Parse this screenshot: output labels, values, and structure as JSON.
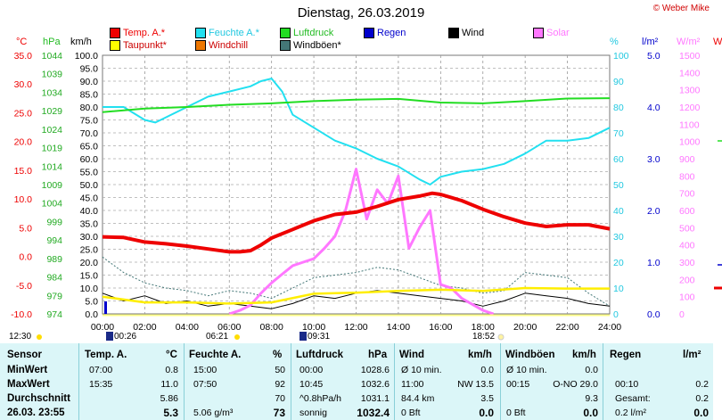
{
  "title": "Dienstag, 26.03.2019",
  "credit": "© Weber Mike",
  "legend": [
    {
      "label": "Temp. A.*",
      "color": "#ee0000"
    },
    {
      "label": "Feuchte A.*",
      "color": "#22e0f0"
    },
    {
      "label": "Luftdruck",
      "color": "#22dd22"
    },
    {
      "label": "Regen",
      "color": "#0000cc"
    },
    {
      "label": "Wind",
      "color": "#000000"
    },
    {
      "label": "Solar",
      "color": "#ff77ff"
    },
    {
      "label": "Taupunkt*",
      "color": "#ffff00"
    },
    {
      "label": "Windchill",
      "color": "#ee7700"
    },
    {
      "label": "Windböen*",
      "color": "#447777"
    }
  ],
  "axis_units": {
    "temp": "°C",
    "pressure": "hPa",
    "wind": "km/h",
    "humidity": "%",
    "rain": "l/m²",
    "solar": "W/m²",
    "right_edge": "W"
  },
  "chart_data": {
    "type": "line",
    "x_ticks": [
      "00:00",
      "02:00",
      "04:00",
      "06:00",
      "08:00",
      "10:00",
      "12:00",
      "14:00",
      "16:00",
      "18:00",
      "20:00",
      "22:00",
      "24:00"
    ],
    "x_range_hours": [
      0,
      24
    ],
    "axes": {
      "temp_c": {
        "range": [
          -10,
          35
        ],
        "ticks": [
          "35.0",
          "30.0",
          "25.0",
          "20.0",
          "15.0",
          "10.0",
          "5.0",
          "0.0",
          "-5.0",
          "-10.0"
        ]
      },
      "pressure_hpa": {
        "range": [
          974,
          1044
        ],
        "ticks": [
          "1044",
          "1039",
          "1034",
          "1029",
          "1024",
          "1019",
          "1014",
          "1009",
          "1004",
          "999",
          "994",
          "989",
          "984",
          "979",
          "974"
        ]
      },
      "wind_kmh": {
        "range": [
          0,
          100
        ],
        "ticks": [
          "100.0",
          "95.0",
          "90.0",
          "85.0",
          "80.0",
          "75.0",
          "70.0",
          "65.0",
          "60.0",
          "55.0",
          "50.0",
          "45.0",
          "40.0",
          "35.0",
          "30.0",
          "25.0",
          "20.0",
          "15.0",
          "10.0",
          "5.0",
          "0.0"
        ]
      },
      "humidity_pct": {
        "range": [
          0,
          100
        ],
        "ticks": [
          "100",
          "90",
          "80",
          "70",
          "60",
          "50",
          "40",
          "30",
          "20",
          "10",
          "0"
        ]
      },
      "rain_l_m2": {
        "range": [
          0,
          5
        ],
        "ticks": [
          "5.0",
          "4.0",
          "3.0",
          "2.0",
          "1.0",
          "0.0"
        ]
      },
      "solar_w_m2": {
        "range": [
          0,
          1500
        ],
        "ticks": [
          "1500",
          "1400",
          "1300",
          "1200",
          "1100",
          "1000",
          "900",
          "800",
          "700",
          "600",
          "500",
          "400",
          "300",
          "200",
          "100",
          "0"
        ]
      }
    },
    "series": [
      {
        "name": "Temp. A.*",
        "axis": "temp_c",
        "x": [
          0,
          1,
          2,
          3,
          4,
          5,
          6,
          6.5,
          7,
          7.5,
          8,
          9,
          10,
          11,
          12,
          13,
          14,
          15,
          15.6,
          16,
          17,
          18,
          19,
          20,
          21,
          22,
          23,
          24
        ],
        "values": [
          3.4,
          3.3,
          2.5,
          2.2,
          1.8,
          1.3,
          0.8,
          0.8,
          1.0,
          2.0,
          3.2,
          4.7,
          6.2,
          7.3,
          7.7,
          8.7,
          9.9,
          10.5,
          11.0,
          10.8,
          9.7,
          8.2,
          6.9,
          5.8,
          5.2,
          5.5,
          5.5,
          4.8
        ]
      },
      {
        "name": "Feuchte A.*",
        "axis": "humidity_pct",
        "x": [
          0,
          1,
          2,
          2.5,
          3,
          4,
          5,
          6,
          7,
          7.5,
          8,
          8.5,
          9,
          10,
          11,
          12,
          13,
          14,
          15,
          15.5,
          16,
          17,
          18,
          19,
          20,
          21,
          22,
          23,
          24
        ],
        "values": [
          80,
          80,
          75,
          74,
          76,
          80,
          84,
          86,
          88,
          90,
          91,
          86,
          77,
          72,
          67,
          64,
          60,
          57,
          52,
          50,
          53,
          55,
          56,
          58,
          62,
          67,
          67,
          68,
          72
        ]
      },
      {
        "name": "Luftdruck",
        "axis": "pressure_hpa",
        "x": [
          0,
          2,
          4,
          6,
          8,
          10,
          12,
          14,
          16,
          18,
          20,
          22,
          24
        ],
        "values": [
          1028.6,
          1029.6,
          1030.0,
          1030.6,
          1031.0,
          1031.6,
          1032.0,
          1032.2,
          1031.2,
          1031.0,
          1031.6,
          1032.3,
          1032.4
        ]
      },
      {
        "name": "Taupunkt*",
        "axis": "temp_c",
        "x": [
          0,
          2,
          4,
          6,
          8,
          10,
          12,
          14,
          16,
          18,
          20,
          22,
          24
        ],
        "values": [
          -7.0,
          -8.0,
          -8.0,
          -8.2,
          -8.0,
          -6.5,
          -6.3,
          -6.0,
          -5.8,
          -6.0,
          -5.5,
          -5.6,
          -5.6
        ]
      },
      {
        "name": "Solar",
        "axis": "solar_w_m2",
        "x": [
          6,
          6.5,
          7,
          7.5,
          8,
          8.5,
          9,
          9.5,
          10,
          10.5,
          11,
          11.5,
          12,
          12.5,
          13,
          13.5,
          14,
          14.5,
          15,
          15.5,
          16,
          16.5,
          17,
          18,
          18.5
        ],
        "values": [
          0,
          20,
          50,
          120,
          180,
          230,
          280,
          300,
          320,
          380,
          450,
          600,
          840,
          550,
          720,
          640,
          800,
          380,
          500,
          600,
          170,
          150,
          90,
          20,
          0
        ]
      },
      {
        "name": "Wind",
        "axis": "wind_kmh",
        "x": [
          0,
          1,
          2,
          3,
          4,
          5,
          6,
          7,
          8,
          9,
          10,
          11,
          12,
          13,
          14,
          15,
          16,
          17,
          18,
          19,
          20,
          21,
          22,
          23,
          24
        ],
        "values": [
          8,
          5,
          7,
          4,
          5,
          3,
          4,
          3,
          2,
          4,
          7,
          6,
          8,
          9,
          8,
          7,
          6,
          5,
          3,
          5,
          8,
          7,
          6,
          4,
          3
        ]
      },
      {
        "name": "Windböen*",
        "axis": "wind_kmh",
        "x": [
          0,
          1,
          2,
          3,
          4,
          5,
          6,
          7,
          8,
          9,
          10,
          11,
          12,
          13,
          14,
          15,
          16,
          17,
          18,
          19,
          20,
          21,
          22,
          23,
          24
        ],
        "values": [
          22,
          16,
          12,
          10,
          9,
          7,
          9,
          8,
          6,
          10,
          14,
          15,
          16,
          18,
          17,
          14,
          11,
          10,
          8,
          9,
          16,
          15,
          14,
          8,
          3
        ]
      }
    ],
    "markers": {
      "sunrise": "06:21",
      "sunset": "18:52",
      "moonset": "09:31",
      "moonrise": "00:26",
      "day_start": "12:30"
    }
  },
  "table": {
    "headers": {
      "sensor": "Sensor",
      "temp": "Temp. A.",
      "temp_unit": "°C",
      "hum": "Feuchte A.",
      "hum_unit": "%",
      "press": "Luftdruck",
      "press_unit": "hPa",
      "wind": "Wind",
      "wind_unit": "km/h",
      "gust": "Windböen",
      "gust_unit": "km/h",
      "rain": "Regen",
      "rain_unit": "l/m²"
    },
    "row_labels": [
      "MinWert",
      "MaxWert",
      "Durchschnitt",
      "26.03. 23:55"
    ],
    "temp": [
      [
        "07:00",
        "0.8"
      ],
      [
        "15:35",
        "11.0"
      ],
      [
        "",
        "5.86"
      ],
      [
        "",
        "5.3"
      ]
    ],
    "hum": [
      [
        "15:00",
        "50"
      ],
      [
        "07:50",
        "92"
      ],
      [
        "",
        "70"
      ],
      [
        "5.06 g/m³",
        "73"
      ]
    ],
    "press": [
      [
        "00:00",
        "1028.6"
      ],
      [
        "10:45",
        "1032.6"
      ],
      [
        "^0.8hPa/h",
        "1031.1"
      ],
      [
        "sonnig",
        "1032.4"
      ]
    ],
    "wind": [
      [
        "Ø 10 min.",
        "0.0"
      ],
      [
        "11:00",
        "NW 13.5"
      ],
      [
        "84.4 km",
        "3.5"
      ],
      [
        "0 Bft",
        "0.0"
      ]
    ],
    "gust": [
      [
        "Ø 10 min.",
        "0.0"
      ],
      [
        "00:15",
        "O-NO 29.0"
      ],
      [
        "",
        "9.3"
      ],
      [
        "0 Bft",
        "0.0"
      ]
    ],
    "rain": [
      [
        "",
        ""
      ],
      [
        "00:10",
        "0.2"
      ],
      [
        "Gesamt:",
        "0.2"
      ],
      [
        "0.2 l/m²",
        "0.0"
      ]
    ]
  }
}
